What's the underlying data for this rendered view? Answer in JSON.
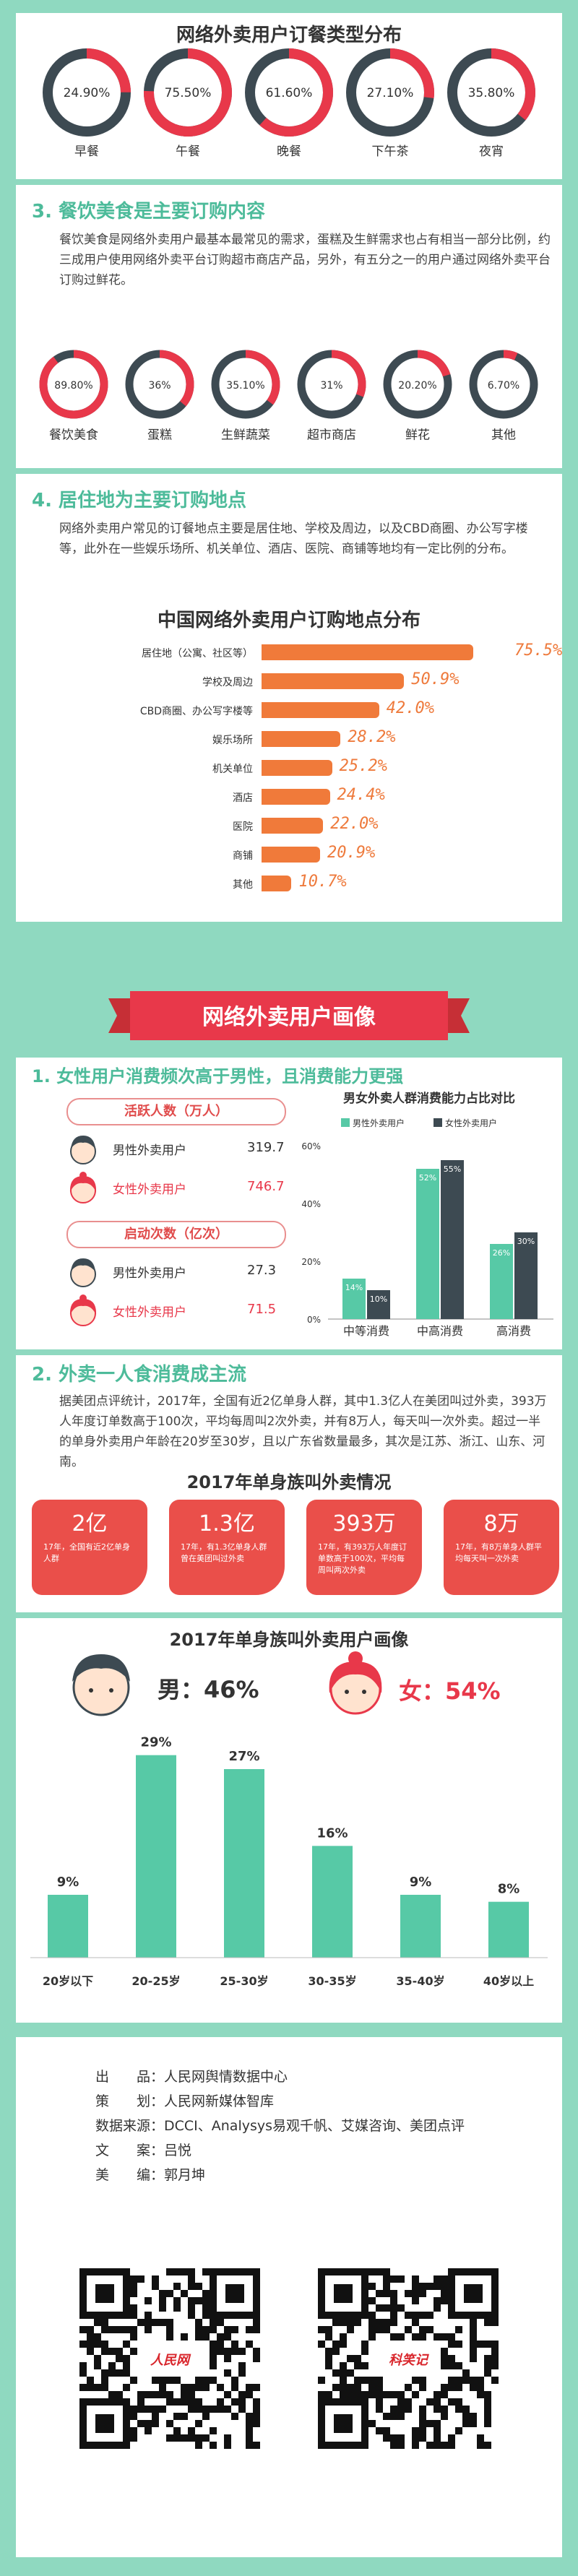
{
  "meal": {
    "title": "网络外卖用户订餐类型分布",
    "items": [
      {
        "value": 24.9,
        "label": "24.90%",
        "name": "早餐"
      },
      {
        "value": 75.5,
        "label": "75.50%",
        "name": "午餐"
      },
      {
        "value": 61.6,
        "label": "61.60%",
        "name": "晚餐"
      },
      {
        "value": 27.1,
        "label": "27.10%",
        "name": "下午茶"
      },
      {
        "value": 35.8,
        "label": "35.80%",
        "name": "夜宵"
      }
    ]
  },
  "section3": {
    "title": "3.  餐饮美食是主要订购内容",
    "para": "餐饮美食是网络外卖用户最基本最常见的需求，蛋糕及生鲜需求也占有相当一部分比例，约三成用户使用网络外卖平台订购超市商店产品，另外，有五分之一的用户通过网络外卖平台订购过鲜花。",
    "items": [
      {
        "value": 89.8,
        "label": "89.80%",
        "name": "餐饮美食"
      },
      {
        "value": 36,
        "label": "36%",
        "name": "蛋糕"
      },
      {
        "value": 35.1,
        "label": "35.10%",
        "name": "生鲜蔬菜"
      },
      {
        "value": 31,
        "label": "31%",
        "name": "超市商店"
      },
      {
        "value": 20.2,
        "label": "20.20%",
        "name": "鲜花"
      },
      {
        "value": 6.7,
        "label": "6.70%",
        "name": "其他"
      }
    ]
  },
  "section4": {
    "title": "4.  居住地为主要订购地点",
    "para": "网络外卖用户常见的订餐地点主要是居住地、学校及周边，以及CBD商圈、办公写字楼等，此外在一些娱乐场所、机关单位、酒店、医院、商铺等地均有一定比例的分布。"
  },
  "chart_data": {
    "type": "bar",
    "title": "中国网络外卖用户订购地点分布",
    "categories": [
      "居住地（公寓、社区等）",
      "学校及周边",
      "CBD商圈、办公写字楼等",
      "娱乐场所",
      "机关单位",
      "酒店",
      "医院",
      "商铺",
      "其他"
    ],
    "values": [
      75.5,
      50.9,
      42.0,
      28.2,
      25.2,
      24.4,
      22.0,
      20.9,
      10.7
    ],
    "labels": [
      "75.5%",
      "50.9%",
      "42.0%",
      "28.2%",
      "25.2%",
      "24.4%",
      "22.0%",
      "20.9%",
      "10.7%"
    ],
    "xlim": [
      0,
      80
    ],
    "color": "#f07a3a"
  },
  "portrait": {
    "banner": "网络外卖用户画像",
    "s1_title": "1.  女性用户消费频次高于男性，且消费能力更强",
    "active_head": "活跃人数（万人）",
    "launch_head": "启动次数（亿次）",
    "male": "男性外卖用户",
    "female": "女性外卖用户",
    "active_male": "319.7",
    "active_female": "746.7",
    "launch_male": "27.3",
    "launch_female": "71.5",
    "gender_chart": {
      "title": "男女外卖人群消费能力占比对比",
      "legend_male": "男性外卖用户",
      "legend_female": "女性外卖用户",
      "yticks": [
        "60%",
        "40%",
        "20%",
        "0%"
      ],
      "categories": [
        "中等消费",
        "中高消费",
        "高消费"
      ],
      "male": [
        14,
        52,
        26
      ],
      "female": [
        10,
        55,
        30
      ],
      "male_labels": [
        "14%",
        "52%",
        "26%"
      ],
      "female_labels": [
        "10%",
        "55%",
        "30%"
      ]
    }
  },
  "section2": {
    "title": "2.  外卖一人食消费成主流",
    "para": "据美团点评统计，2017年，全国有近2亿单身人群，其中1.3亿人在美团叫过外卖，393万人年度订单数高于100次，平均每周叫2次外卖，并有8万人，每天叫一次外卖。超过一半的单身外卖用户年龄在20岁至30岁，且以广东省数量最多，其次是江苏、浙江、山东、河南。"
  },
  "single": {
    "title": "2017年单身族叫外卖情况",
    "boxes": [
      {
        "big": "2亿",
        "small": "17年，全国有近2亿单身人群"
      },
      {
        "big": "1.3亿",
        "small": "17年，有1.3亿单身人群曾在美团叫过外卖"
      },
      {
        "big": "393万",
        "small": "17年，有393万人年度订单数高于100次，平均每周叫两次外卖"
      },
      {
        "big": "8万",
        "small": "17年，有8万单身人群平均每天叫一次外卖"
      }
    ]
  },
  "age": {
    "title": "2017年单身族叫外卖用户画像",
    "male_pct": "男：46%",
    "female_pct": "女：54%",
    "categories": [
      "20岁以下",
      "20-25岁",
      "25-30岁",
      "30-35岁",
      "35-40岁",
      "40岁以上"
    ],
    "values": [
      9,
      29,
      27,
      16,
      9,
      8
    ],
    "labels": [
      "9%",
      "29%",
      "27%",
      "16%",
      "9%",
      "8%"
    ]
  },
  "credits": [
    "出　　品：人民网舆情数据中心",
    "策　　划：人民网新媒体智库",
    "数据来源：DCCI、Analysys易观千帆、艾媒咨询、美团点评",
    "文　　案：吕悦",
    "美　　编：郭月坤"
  ],
  "qr_left_logo": "人民网",
  "qr_right_logo": "科笑记",
  "colors": {
    "red": "#e8384a",
    "dark": "#3d4a52",
    "green": "#57c9a6",
    "orange": "#f07a3a"
  }
}
